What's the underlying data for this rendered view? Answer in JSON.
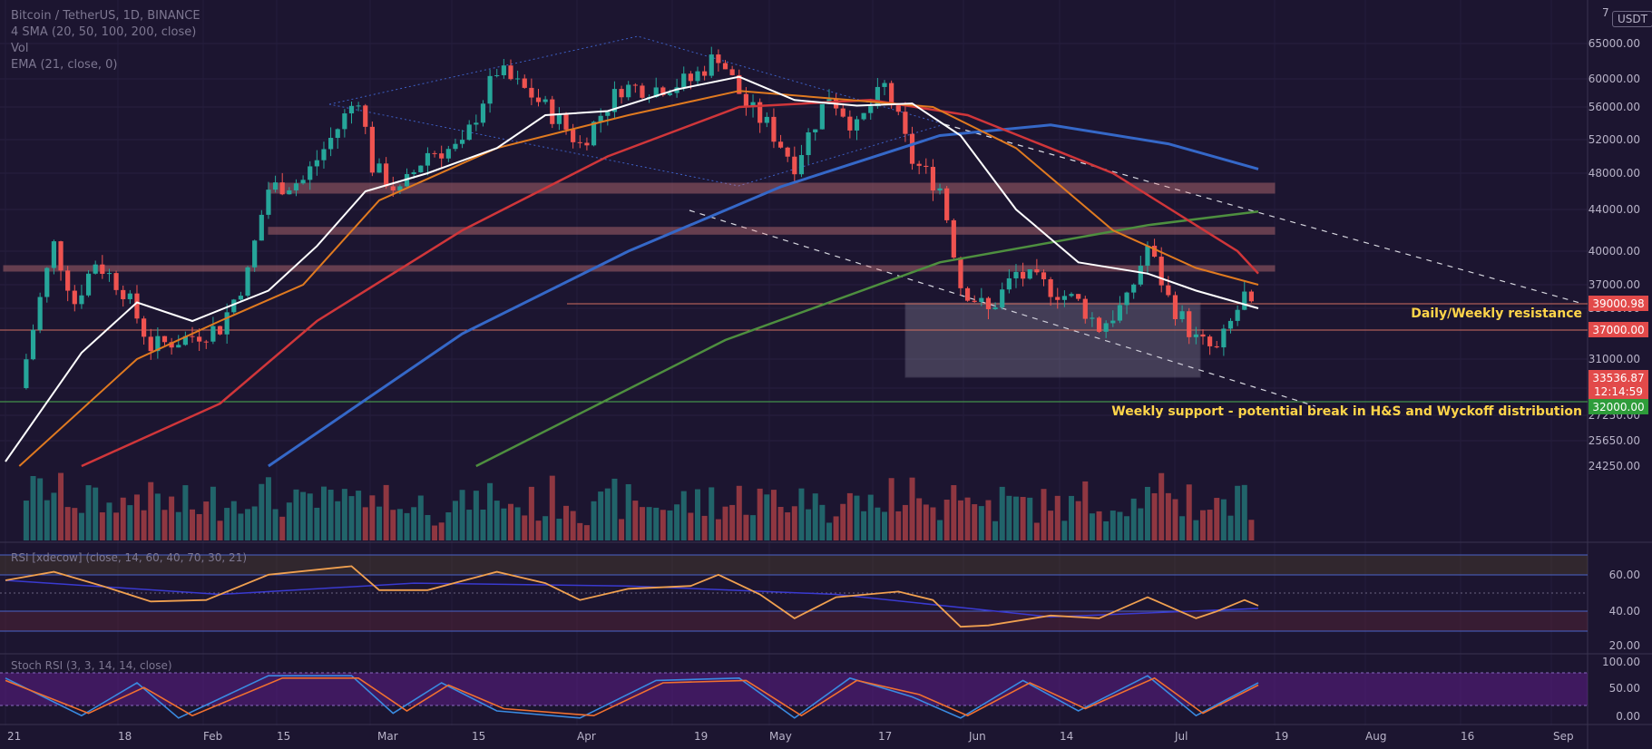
{
  "header": {
    "symbol_line": "Bitcoin / TetherUS, 1D, BINANCE",
    "ma_line": "4 SMA (20, 50, 100, 200, close)",
    "vol_line": "Vol",
    "ema_line": "EMA (21, close, 0)",
    "currency": "USDT"
  },
  "colors": {
    "background": "#1c1530",
    "candle_up": "#26a69a",
    "candle_down": "#ef5350",
    "sma20": "#ffffff",
    "sma50": "#e07a20",
    "sma100": "#d0363a",
    "sma200": "#3568c8",
    "ema21": "#4e8f3f",
    "resistance_label": "#ffd54a",
    "support_label": "#ffd54a"
  },
  "price_axis": {
    "ticks": [
      "65000.00",
      "60000.00",
      "56000.00",
      "52000.00",
      "48000.00",
      "44000.00",
      "40000.00",
      "37000.00",
      "35000.00",
      "31000.00",
      "29000.00",
      "27250.00",
      "25650.00",
      "24250.00"
    ],
    "top_clipped_tick": "7"
  },
  "price_tags": [
    {
      "text": "39000.98",
      "style": "red"
    },
    {
      "text": "37000.00",
      "style": "red"
    },
    {
      "text": "33536.87",
      "style": "red"
    },
    {
      "text": "12:14:59",
      "style": "red"
    },
    {
      "text": "32000.00",
      "style": "green"
    }
  ],
  "annotations": {
    "resistance": "Daily/Weekly resistance",
    "support": "Weekly support - potential break in H&S and Wyckoff distribution"
  },
  "rsi": {
    "label": "RSI [xdecow] (close, 14, 60, 40, 70, 30, 21)",
    "ticks": [
      "60.00",
      "40.00",
      "20.00"
    ]
  },
  "stoch": {
    "label": "Stoch RSI (3, 3, 14, 14, close)",
    "ticks": [
      "100.00",
      "50.00",
      "0.00"
    ]
  },
  "time_axis": [
    "21",
    "18",
    "Feb",
    "15",
    "Mar",
    "15",
    "Apr",
    "19",
    "May",
    "17",
    "Jun",
    "14",
    "Jul",
    "19",
    "Aug",
    "16",
    "Sep"
  ],
  "chart_data": {
    "type": "candlestick",
    "title": "Bitcoin / TetherUS, 1D, BINANCE",
    "x_range": [
      "2021-01-01",
      "2021-09-05"
    ],
    "y_range": [
      24250,
      68000
    ],
    "last_price": 33536.87,
    "levels": {
      "resistance": [
        39000.98,
        37000
      ],
      "support": 32000,
      "zones": [
        [
          46000,
          46800
        ],
        [
          41800,
          42200
        ]
      ]
    },
    "close_series": [
      {
        "date": "2021-01-04",
        "value": 31000
      },
      {
        "date": "2021-01-08",
        "value": 40600
      },
      {
        "date": "2021-01-11",
        "value": 35500
      },
      {
        "date": "2021-01-14",
        "value": 39100
      },
      {
        "date": "2021-01-18",
        "value": 36600
      },
      {
        "date": "2021-01-22",
        "value": 32000
      },
      {
        "date": "2021-01-26",
        "value": 32500
      },
      {
        "date": "2021-02-01",
        "value": 33500
      },
      {
        "date": "2021-02-05",
        "value": 38000
      },
      {
        "date": "2021-02-08",
        "value": 46300
      },
      {
        "date": "2021-02-13",
        "value": 47200
      },
      {
        "date": "2021-02-17",
        "value": 52100
      },
      {
        "date": "2021-02-21",
        "value": 57500
      },
      {
        "date": "2021-02-23",
        "value": 48800
      },
      {
        "date": "2021-02-27",
        "value": 45800
      },
      {
        "date": "2021-03-03",
        "value": 50500
      },
      {
        "date": "2021-03-08",
        "value": 51000
      },
      {
        "date": "2021-03-13",
        "value": 61200
      },
      {
        "date": "2021-03-18",
        "value": 57700
      },
      {
        "date": "2021-03-22",
        "value": 54300
      },
      {
        "date": "2021-03-25",
        "value": 51400
      },
      {
        "date": "2021-03-31",
        "value": 58800
      },
      {
        "date": "2021-04-05",
        "value": 58700
      },
      {
        "date": "2021-04-10",
        "value": 59800
      },
      {
        "date": "2021-04-14",
        "value": 63500
      },
      {
        "date": "2021-04-18",
        "value": 56200
      },
      {
        "date": "2021-04-21",
        "value": 53800
      },
      {
        "date": "2021-04-25",
        "value": 49100
      },
      {
        "date": "2021-04-30",
        "value": 57700
      },
      {
        "date": "2021-05-04",
        "value": 53300
      },
      {
        "date": "2021-05-08",
        "value": 58900
      },
      {
        "date": "2021-05-12",
        "value": 49500
      },
      {
        "date": "2021-05-16",
        "value": 46400
      },
      {
        "date": "2021-05-19",
        "value": 37000
      },
      {
        "date": "2021-05-23",
        "value": 34700
      },
      {
        "date": "2021-05-27",
        "value": 38000
      },
      {
        "date": "2021-06-01",
        "value": 36700
      },
      {
        "date": "2021-06-05",
        "value": 35500
      },
      {
        "date": "2021-06-08",
        "value": 33500
      },
      {
        "date": "2021-06-12",
        "value": 35500
      },
      {
        "date": "2021-06-15",
        "value": 40500
      },
      {
        "date": "2021-06-18",
        "value": 35800
      },
      {
        "date": "2021-06-22",
        "value": 32500
      },
      {
        "date": "2021-06-25",
        "value": 31600
      },
      {
        "date": "2021-06-29",
        "value": 36000
      },
      {
        "date": "2021-07-01",
        "value": 33536.87
      }
    ],
    "sma20": [
      {
        "date": "2021-01-01",
        "value": 24500
      },
      {
        "date": "2021-01-12",
        "value": 31500
      },
      {
        "date": "2021-01-20",
        "value": 35500
      },
      {
        "date": "2021-01-28",
        "value": 34000
      },
      {
        "date": "2021-02-08",
        "value": 36500
      },
      {
        "date": "2021-02-15",
        "value": 40500
      },
      {
        "date": "2021-02-22",
        "value": 46000
      },
      {
        "date": "2021-03-03",
        "value": 48000
      },
      {
        "date": "2021-03-13",
        "value": 51000
      },
      {
        "date": "2021-03-20",
        "value": 55000
      },
      {
        "date": "2021-03-29",
        "value": 55500
      },
      {
        "date": "2021-04-08",
        "value": 58500
      },
      {
        "date": "2021-04-17",
        "value": 60300
      },
      {
        "date": "2021-04-25",
        "value": 57000
      },
      {
        "date": "2021-05-04",
        "value": 56200
      },
      {
        "date": "2021-05-12",
        "value": 56500
      },
      {
        "date": "2021-05-19",
        "value": 52500
      },
      {
        "date": "2021-05-27",
        "value": 44000
      },
      {
        "date": "2021-06-05",
        "value": 39000
      },
      {
        "date": "2021-06-15",
        "value": 38000
      },
      {
        "date": "2021-06-22",
        "value": 36500
      },
      {
        "date": "2021-07-01",
        "value": 35000
      }
    ],
    "sma50": [
      {
        "date": "2021-01-03",
        "value": 22000
      },
      {
        "date": "2021-01-20",
        "value": 31000
      },
      {
        "date": "2021-02-01",
        "value": 34000
      },
      {
        "date": "2021-02-13",
        "value": 37000
      },
      {
        "date": "2021-02-24",
        "value": 45000
      },
      {
        "date": "2021-03-13",
        "value": 51000
      },
      {
        "date": "2021-04-01",
        "value": 55000
      },
      {
        "date": "2021-04-17",
        "value": 58300
      },
      {
        "date": "2021-05-03",
        "value": 57000
      },
      {
        "date": "2021-05-15",
        "value": 56000
      },
      {
        "date": "2021-05-27",
        "value": 51000
      },
      {
        "date": "2021-06-10",
        "value": 42000
      },
      {
        "date": "2021-06-22",
        "value": 38500
      },
      {
        "date": "2021-07-01",
        "value": 37000
      }
    ],
    "sma100": [
      {
        "date": "2021-01-12",
        "value": 22000
      },
      {
        "date": "2021-02-01",
        "value": 28000
      },
      {
        "date": "2021-02-15",
        "value": 34000
      },
      {
        "date": "2021-03-08",
        "value": 42000
      },
      {
        "date": "2021-03-29",
        "value": 50000
      },
      {
        "date": "2021-04-17",
        "value": 56000
      },
      {
        "date": "2021-05-06",
        "value": 57000
      },
      {
        "date": "2021-05-20",
        "value": 55000
      },
      {
        "date": "2021-06-10",
        "value": 48000
      },
      {
        "date": "2021-06-28",
        "value": 40000
      },
      {
        "date": "2021-07-01",
        "value": 38000
      }
    ],
    "sma200": [
      {
        "date": "2021-02-08",
        "value": 24250
      },
      {
        "date": "2021-03-08",
        "value": 33000
      },
      {
        "date": "2021-04-01",
        "value": 40000
      },
      {
        "date": "2021-04-23",
        "value": 46500
      },
      {
        "date": "2021-05-16",
        "value": 52500
      },
      {
        "date": "2021-06-01",
        "value": 53800
      },
      {
        "date": "2021-06-18",
        "value": 51500
      },
      {
        "date": "2021-07-01",
        "value": 48500
      }
    ],
    "ema21": [
      {
        "date": "2021-03-10",
        "value": 24250
      },
      {
        "date": "2021-04-15",
        "value": 32500
      },
      {
        "date": "2021-05-16",
        "value": 39000
      },
      {
        "date": "2021-06-15",
        "value": 42500
      },
      {
        "date": "2021-07-01",
        "value": 43800
      }
    ],
    "rsi_range": [
      15,
      80
    ],
    "rsi_series": [
      {
        "date": "2021-01-01",
        "value": 62
      },
      {
        "date": "2021-01-08",
        "value": 68
      },
      {
        "date": "2021-01-15",
        "value": 58
      },
      {
        "date": "2021-01-22",
        "value": 47
      },
      {
        "date": "2021-01-30",
        "value": 48
      },
      {
        "date": "2021-02-08",
        "value": 66
      },
      {
        "date": "2021-02-20",
        "value": 72
      },
      {
        "date": "2021-02-24",
        "value": 55
      },
      {
        "date": "2021-03-03",
        "value": 55
      },
      {
        "date": "2021-03-13",
        "value": 68
      },
      {
        "date": "2021-03-20",
        "value": 60
      },
      {
        "date": "2021-03-25",
        "value": 48
      },
      {
        "date": "2021-04-01",
        "value": 56
      },
      {
        "date": "2021-04-10",
        "value": 58
      },
      {
        "date": "2021-04-14",
        "value": 66
      },
      {
        "date": "2021-04-20",
        "value": 52
      },
      {
        "date": "2021-04-25",
        "value": 35
      },
      {
        "date": "2021-05-01",
        "value": 50
      },
      {
        "date": "2021-05-10",
        "value": 54
      },
      {
        "date": "2021-05-15",
        "value": 48
      },
      {
        "date": "2021-05-19",
        "value": 29
      },
      {
        "date": "2021-05-23",
        "value": 30
      },
      {
        "date": "2021-06-01",
        "value": 37
      },
      {
        "date": "2021-06-08",
        "value": 35
      },
      {
        "date": "2021-06-15",
        "value": 50
      },
      {
        "date": "2021-06-22",
        "value": 35
      },
      {
        "date": "2021-06-25",
        "value": 40
      },
      {
        "date": "2021-06-29",
        "value": 48
      },
      {
        "date": "2021-07-01",
        "value": 44
      }
    ],
    "rsi_ma": [
      {
        "date": "2021-01-01",
        "value": 62
      },
      {
        "date": "2021-02-01",
        "value": 52
      },
      {
        "date": "2021-03-01",
        "value": 60
      },
      {
        "date": "2021-04-01",
        "value": 58
      },
      {
        "date": "2021-05-01",
        "value": 52
      },
      {
        "date": "2021-06-01",
        "value": 36
      },
      {
        "date": "2021-07-01",
        "value": 42
      }
    ],
    "stoch_range": [
      -5,
      105
    ],
    "stoch_k": [
      {
        "date": "2021-01-01",
        "value": 90
      },
      {
        "date": "2021-01-12",
        "value": 10
      },
      {
        "date": "2021-01-20",
        "value": 80
      },
      {
        "date": "2021-01-26",
        "value": 5
      },
      {
        "date": "2021-02-08",
        "value": 95
      },
      {
        "date": "2021-02-20",
        "value": 95
      },
      {
        "date": "2021-02-26",
        "value": 15
      },
      {
        "date": "2021-03-05",
        "value": 80
      },
      {
        "date": "2021-03-13",
        "value": 20
      },
      {
        "date": "2021-03-25",
        "value": 5
      },
      {
        "date": "2021-04-05",
        "value": 85
      },
      {
        "date": "2021-04-17",
        "value": 90
      },
      {
        "date": "2021-04-25",
        "value": 5
      },
      {
        "date": "2021-05-03",
        "value": 90
      },
      {
        "date": "2021-05-12",
        "value": 50
      },
      {
        "date": "2021-05-19",
        "value": 5
      },
      {
        "date": "2021-05-28",
        "value": 85
      },
      {
        "date": "2021-06-05",
        "value": 20
      },
      {
        "date": "2021-06-15",
        "value": 95
      },
      {
        "date": "2021-06-22",
        "value": 10
      },
      {
        "date": "2021-07-01",
        "value": 80
      }
    ],
    "stoch_d": [
      {
        "date": "2021-01-01",
        "value": 85
      },
      {
        "date": "2021-01-13",
        "value": 15
      },
      {
        "date": "2021-01-21",
        "value": 70
      },
      {
        "date": "2021-01-28",
        "value": 10
      },
      {
        "date": "2021-02-10",
        "value": 90
      },
      {
        "date": "2021-02-21",
        "value": 90
      },
      {
        "date": "2021-02-28",
        "value": 20
      },
      {
        "date": "2021-03-06",
        "value": 75
      },
      {
        "date": "2021-03-14",
        "value": 25
      },
      {
        "date": "2021-03-27",
        "value": 10
      },
      {
        "date": "2021-04-06",
        "value": 80
      },
      {
        "date": "2021-04-18",
        "value": 85
      },
      {
        "date": "2021-04-26",
        "value": 10
      },
      {
        "date": "2021-05-04",
        "value": 85
      },
      {
        "date": "2021-05-13",
        "value": 55
      },
      {
        "date": "2021-05-20",
        "value": 10
      },
      {
        "date": "2021-05-29",
        "value": 80
      },
      {
        "date": "2021-06-06",
        "value": 25
      },
      {
        "date": "2021-06-16",
        "value": 90
      },
      {
        "date": "2021-06-23",
        "value": 15
      },
      {
        "date": "2021-07-01",
        "value": 75
      }
    ]
  }
}
